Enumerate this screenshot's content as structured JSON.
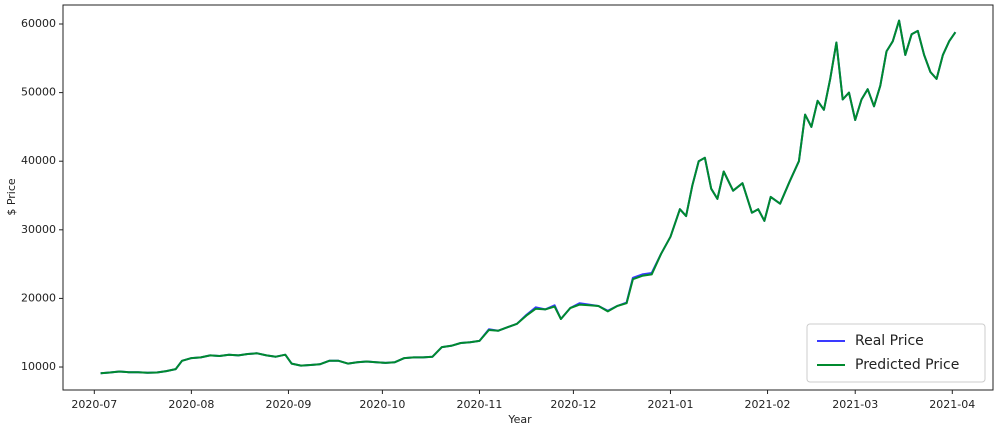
{
  "chart_data": {
    "type": "line",
    "xlabel": "Year",
    "ylabel": "$ Price",
    "x": [
      2,
      5,
      8,
      11,
      14,
      17,
      20,
      23,
      26,
      28,
      31,
      34,
      37,
      40,
      43,
      46,
      49,
      52,
      55,
      58,
      61,
      63,
      66,
      69,
      72,
      75,
      78,
      81,
      84,
      87,
      90,
      93,
      96,
      99,
      102,
      105,
      108,
      111,
      114,
      117,
      120,
      123,
      126,
      129,
      132,
      135,
      138,
      141,
      144,
      147,
      149,
      152,
      155,
      158,
      161,
      164,
      167,
      170,
      172,
      175,
      178,
      181,
      184,
      187,
      189,
      191,
      193,
      195,
      197,
      199,
      201,
      204,
      207,
      210,
      212,
      214,
      216,
      219,
      222,
      225,
      227,
      229,
      231,
      233,
      235,
      237,
      239,
      241,
      243,
      245,
      247,
      249,
      251,
      253,
      255,
      257,
      259,
      261,
      263,
      265,
      267,
      269,
      271,
      273,
      275
    ],
    "series": [
      {
        "name": "Real Price",
        "color": "#3a3aff",
        "values": [
          9100,
          9200,
          9350,
          9250,
          9250,
          9150,
          9200,
          9400,
          9700,
          10900,
          11300,
          11400,
          11700,
          11600,
          11800,
          11700,
          11900,
          12000,
          11700,
          11500,
          11800,
          10500,
          10200,
          10300,
          10400,
          10900,
          10900,
          10500,
          10700,
          10800,
          10700,
          10600,
          10700,
          11300,
          11400,
          11400,
          11500,
          12900,
          13100,
          13500,
          13600,
          13800,
          15500,
          15300,
          15800,
          16300,
          17600,
          18700,
          18400,
          19000,
          17000,
          18600,
          19300,
          19100,
          18900,
          18200,
          18900,
          19400,
          23000,
          23500,
          23700,
          26500,
          29000,
          33000,
          32000,
          36500,
          40000,
          40500,
          36000,
          34500,
          38500,
          35700,
          36800,
          32500,
          33000,
          31300,
          34800,
          33800,
          37000,
          40000,
          46800,
          45000,
          48800,
          47500,
          52000,
          57300,
          49000,
          50000,
          46000,
          49000,
          50500,
          48000,
          51000,
          56000,
          57500,
          60500,
          55500,
          58500,
          59000,
          55500,
          53000,
          52000,
          55500,
          57500,
          58800
        ]
      },
      {
        "name": "Predicted Price",
        "color": "#008a2e",
        "values": [
          9100,
          9200,
          9350,
          9250,
          9250,
          9150,
          9200,
          9400,
          9700,
          10900,
          11300,
          11400,
          11700,
          11600,
          11800,
          11700,
          11900,
          12000,
          11700,
          11500,
          11800,
          10500,
          10200,
          10300,
          10400,
          10900,
          10900,
          10500,
          10700,
          10800,
          10700,
          10600,
          10700,
          11300,
          11400,
          11400,
          11500,
          12900,
          13100,
          13500,
          13600,
          13800,
          15400,
          15300,
          15800,
          16300,
          17500,
          18500,
          18400,
          18800,
          17000,
          18600,
          19100,
          19000,
          18900,
          18100,
          18900,
          19300,
          22800,
          23300,
          23500,
          26500,
          29000,
          33000,
          32000,
          36500,
          40000,
          40500,
          36000,
          34500,
          38500,
          35700,
          36800,
          32500,
          33000,
          31300,
          34800,
          33800,
          37000,
          40000,
          46800,
          45000,
          48800,
          47500,
          52000,
          57300,
          49000,
          50000,
          46000,
          49000,
          50500,
          48000,
          51000,
          56000,
          57500,
          60500,
          55500,
          58500,
          59000,
          55500,
          53000,
          52000,
          55500,
          57500,
          58800
        ]
      }
    ],
    "xlim": [
      -10,
      287
    ],
    "xticks": [
      {
        "value": 0,
        "label": "2020-07"
      },
      {
        "value": 31,
        "label": "2020-08"
      },
      {
        "value": 62,
        "label": "2020-09"
      },
      {
        "value": 92,
        "label": "2020-10"
      },
      {
        "value": 123,
        "label": "2020-11"
      },
      {
        "value": 153,
        "label": "2020-12"
      },
      {
        "value": 184,
        "label": "2021-01"
      },
      {
        "value": 215,
        "label": "2021-02"
      },
      {
        "value": 243,
        "label": "2021-03"
      },
      {
        "value": 274,
        "label": "2021-04"
      }
    ],
    "ylim": [
      6650,
      62770
    ],
    "yticks": [
      10000,
      20000,
      30000,
      40000,
      50000,
      60000
    ],
    "legend": "lower right"
  }
}
